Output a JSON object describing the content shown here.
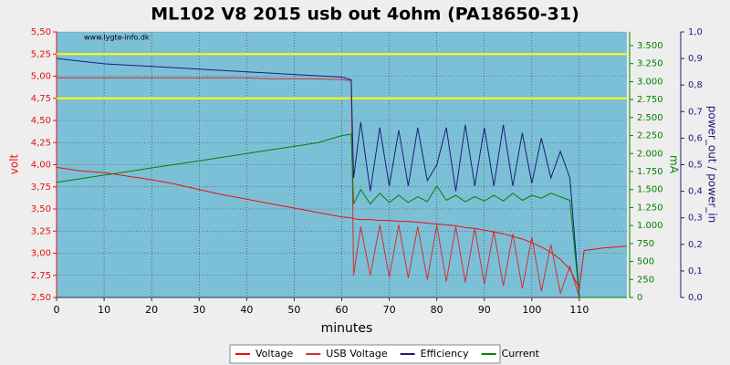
{
  "chart_data": {
    "type": "line",
    "title": "ML102 V8 2015 usb out 4ohm (PA18650-31)",
    "watermark": "www.lygte-info.dk",
    "x_label": "minutes",
    "y_label": "volt",
    "y2_label": "mA",
    "y3_label": "power_out / power_in",
    "xlim": [
      0,
      120
    ],
    "xticks": [
      0,
      10,
      20,
      30,
      40,
      50,
      60,
      70,
      80,
      90,
      100,
      110
    ],
    "ylim": [
      2.5,
      5.5
    ],
    "yticks": [
      {
        "value": 2.5,
        "label": "2,50"
      },
      {
        "value": 2.75,
        "label": "2,75"
      },
      {
        "value": 3,
        "label": "3,00"
      },
      {
        "value": 3.25,
        "label": "3,25"
      },
      {
        "value": 3.5,
        "label": "3,50"
      },
      {
        "value": 3.75,
        "label": "3,75"
      },
      {
        "value": 4,
        "label": "4,00"
      },
      {
        "value": 4.25,
        "label": "4,25"
      },
      {
        "value": 4.5,
        "label": "4,50"
      },
      {
        "value": 4.75,
        "label": "4,75"
      },
      {
        "value": 5,
        "label": "5,00"
      },
      {
        "value": 5.25,
        "label": "5,25"
      },
      {
        "value": 5.5,
        "label": "5,50"
      }
    ],
    "y2lim": [
      0,
      3690
    ],
    "y2ticks": [
      0,
      250,
      500,
      750,
      {
        "value": 1000,
        "label": "1.000"
      },
      {
        "value": 1250,
        "label": "1.250"
      },
      {
        "value": 1500,
        "label": "1.500"
      },
      {
        "value": 1750,
        "label": "1.750"
      },
      {
        "value": 2000,
        "label": "2.000"
      },
      {
        "value": 2250,
        "label": "2.250"
      },
      {
        "value": 2500,
        "label": "2.500"
      },
      {
        "value": 2750,
        "label": "2.750"
      },
      {
        "value": 3000,
        "label": "3.000"
      },
      {
        "value": 3250,
        "label": "3.250"
      },
      {
        "value": 3500,
        "label": "3.500"
      }
    ],
    "y3lim": [
      0,
      1
    ],
    "y3ticks": [
      {
        "value": 0,
        "label": "0,0"
      },
      {
        "value": 0.1,
        "label": "0,1"
      },
      {
        "value": 0.2,
        "label": "0,2"
      },
      {
        "value": 0.3,
        "label": "0,3"
      },
      {
        "value": 0.4,
        "label": "0,4"
      },
      {
        "value": 0.5,
        "label": "0,5"
      },
      {
        "value": 0.6,
        "label": "0,6"
      },
      {
        "value": 0.7,
        "label": "0,7"
      },
      {
        "value": 0.8,
        "label": "0,8"
      },
      {
        "value": 0.9,
        "label": "0,9"
      },
      {
        "value": 1,
        "label": "1,0"
      }
    ],
    "grid": true,
    "reference_lines": {
      "values": [
        5.25,
        4.75
      ],
      "color": "#ffff00"
    },
    "x": [
      0,
      5,
      10,
      15,
      20,
      25,
      30,
      35,
      40,
      45,
      50,
      55,
      60,
      62,
      62.5,
      64,
      66,
      68,
      70,
      72,
      74,
      76,
      78,
      80,
      82,
      84,
      86,
      88,
      90,
      92,
      94,
      96,
      98,
      100,
      102,
      104,
      106,
      108,
      110,
      111,
      115,
      120
    ],
    "series": [
      {
        "name": "Voltage",
        "color": "#e81010",
        "values": [
          3.97,
          3.93,
          3.91,
          3.87,
          3.83,
          3.78,
          3.72,
          3.66,
          3.61,
          3.56,
          3.51,
          3.46,
          3.41,
          3.4,
          3.39,
          3.38,
          3.38,
          3.37,
          3.37,
          3.36,
          3.36,
          3.35,
          3.34,
          3.33,
          3.32,
          3.31,
          3.29,
          3.28,
          3.26,
          3.24,
          3.22,
          3.19,
          3.16,
          3.12,
          3.07,
          3.01,
          2.93,
          2.82,
          2.6,
          3.03,
          3.06,
          3.08
        ]
      },
      {
        "name": "USB Voltage",
        "color": "#d03030",
        "values": [
          4.98,
          4.98,
          4.98,
          4.98,
          4.98,
          4.98,
          4.98,
          4.98,
          4.98,
          4.97,
          4.97,
          4.97,
          4.96,
          4.95,
          2.75,
          3.3,
          2.75,
          3.32,
          2.73,
          3.32,
          2.72,
          3.3,
          2.7,
          3.32,
          2.68,
          3.3,
          2.67,
          3.28,
          2.65,
          3.25,
          2.63,
          3.22,
          2.6,
          3.18,
          2.57,
          3.1,
          2.55,
          2.85,
          2.5,
          2.5,
          2.5,
          2.5
        ]
      },
      {
        "name": "Efficiency",
        "color": "#1c1c78",
        "axis": "y3",
        "values": [
          0.9,
          0.89,
          0.88,
          0.875,
          0.87,
          0.865,
          0.86,
          0.855,
          0.85,
          0.845,
          0.84,
          0.835,
          0.83,
          0.82,
          0.45,
          0.66,
          0.4,
          0.64,
          0.42,
          0.63,
          0.42,
          0.64,
          0.44,
          0.5,
          0.64,
          0.4,
          0.65,
          0.42,
          0.64,
          0.42,
          0.65,
          0.42,
          0.62,
          0.43,
          0.6,
          0.45,
          0.55,
          0.45,
          0,
          0,
          0,
          0
        ]
      },
      {
        "name": "Current",
        "color": "#008000",
        "axis": "y2",
        "values": [
          1600,
          1650,
          1700,
          1750,
          1800,
          1850,
          1900,
          1950,
          2000,
          2050,
          2100,
          2150,
          2250,
          2270,
          1300,
          1500,
          1300,
          1450,
          1320,
          1420,
          1320,
          1400,
          1330,
          1550,
          1350,
          1420,
          1330,
          1400,
          1340,
          1420,
          1340,
          1450,
          1350,
          1420,
          1380,
          1450,
          1400,
          1350,
          0,
          0,
          0,
          0
        ]
      }
    ]
  }
}
